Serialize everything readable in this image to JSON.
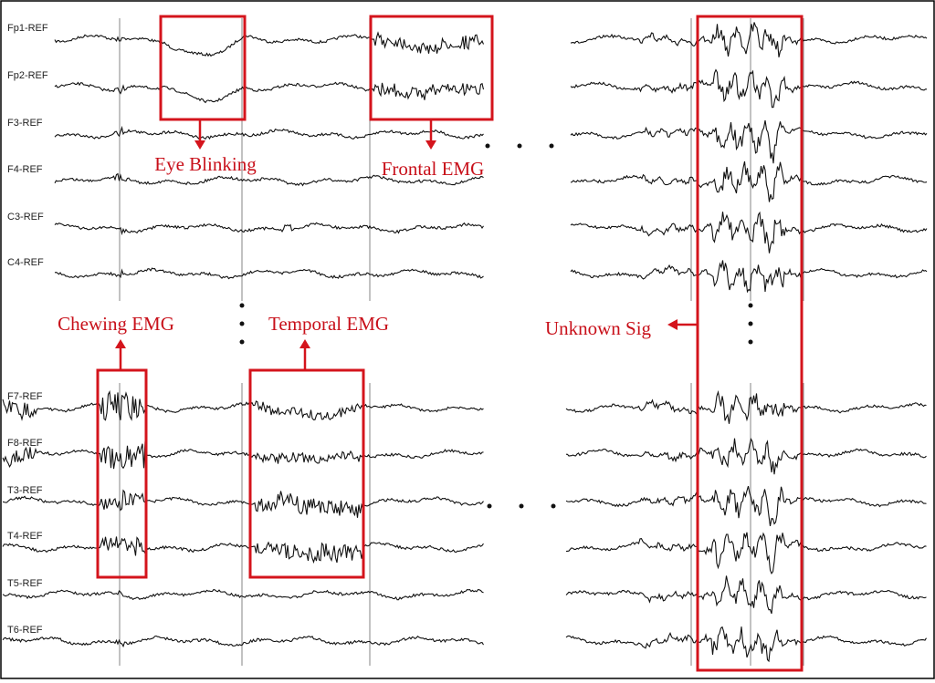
{
  "channels": [
    "Fp1-REF",
    "Fp2-REF",
    "F3-REF",
    "F4-REF",
    "C3-REF",
    "C4-REF",
    "F7-REF",
    "F8-REF",
    "T3-REF",
    "T4-REF",
    "T5-REF",
    "T6-REF"
  ],
  "annotations": [
    "Eye Blinking",
    "Frontal EMG",
    "Chewing EMG",
    "Temporal EMG",
    "Unknown Sig"
  ]
}
